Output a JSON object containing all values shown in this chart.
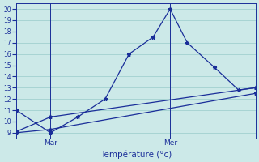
{
  "xlabel": "Température (°c)",
  "background_color": "#cce9e8",
  "grid_color": "#99ccca",
  "line_color": "#1a2e99",
  "ylim": [
    8.5,
    20.5
  ],
  "xlim": [
    0,
    7
  ],
  "yticks": [
    9,
    10,
    11,
    12,
    13,
    14,
    15,
    16,
    17,
    18,
    19,
    20
  ],
  "x_mar": 1.0,
  "x_mer": 4.5,
  "x_end": 7.0,
  "line1_x": [
    0,
    1.0,
    1.8,
    2.6,
    3.3,
    4.0,
    4.5,
    5.0,
    5.8,
    6.5,
    7.0
  ],
  "line1_y": [
    11,
    9,
    10.4,
    12.0,
    16.0,
    17.5,
    20.0,
    17.0,
    14.8,
    12.8,
    13.0
  ],
  "line2_x": [
    0,
    1.0,
    7.0
  ],
  "line2_y": [
    9.1,
    10.4,
    13.0
  ],
  "line3_x": [
    0,
    1.0,
    7.0
  ],
  "line3_y": [
    9.0,
    9.3,
    12.5
  ]
}
